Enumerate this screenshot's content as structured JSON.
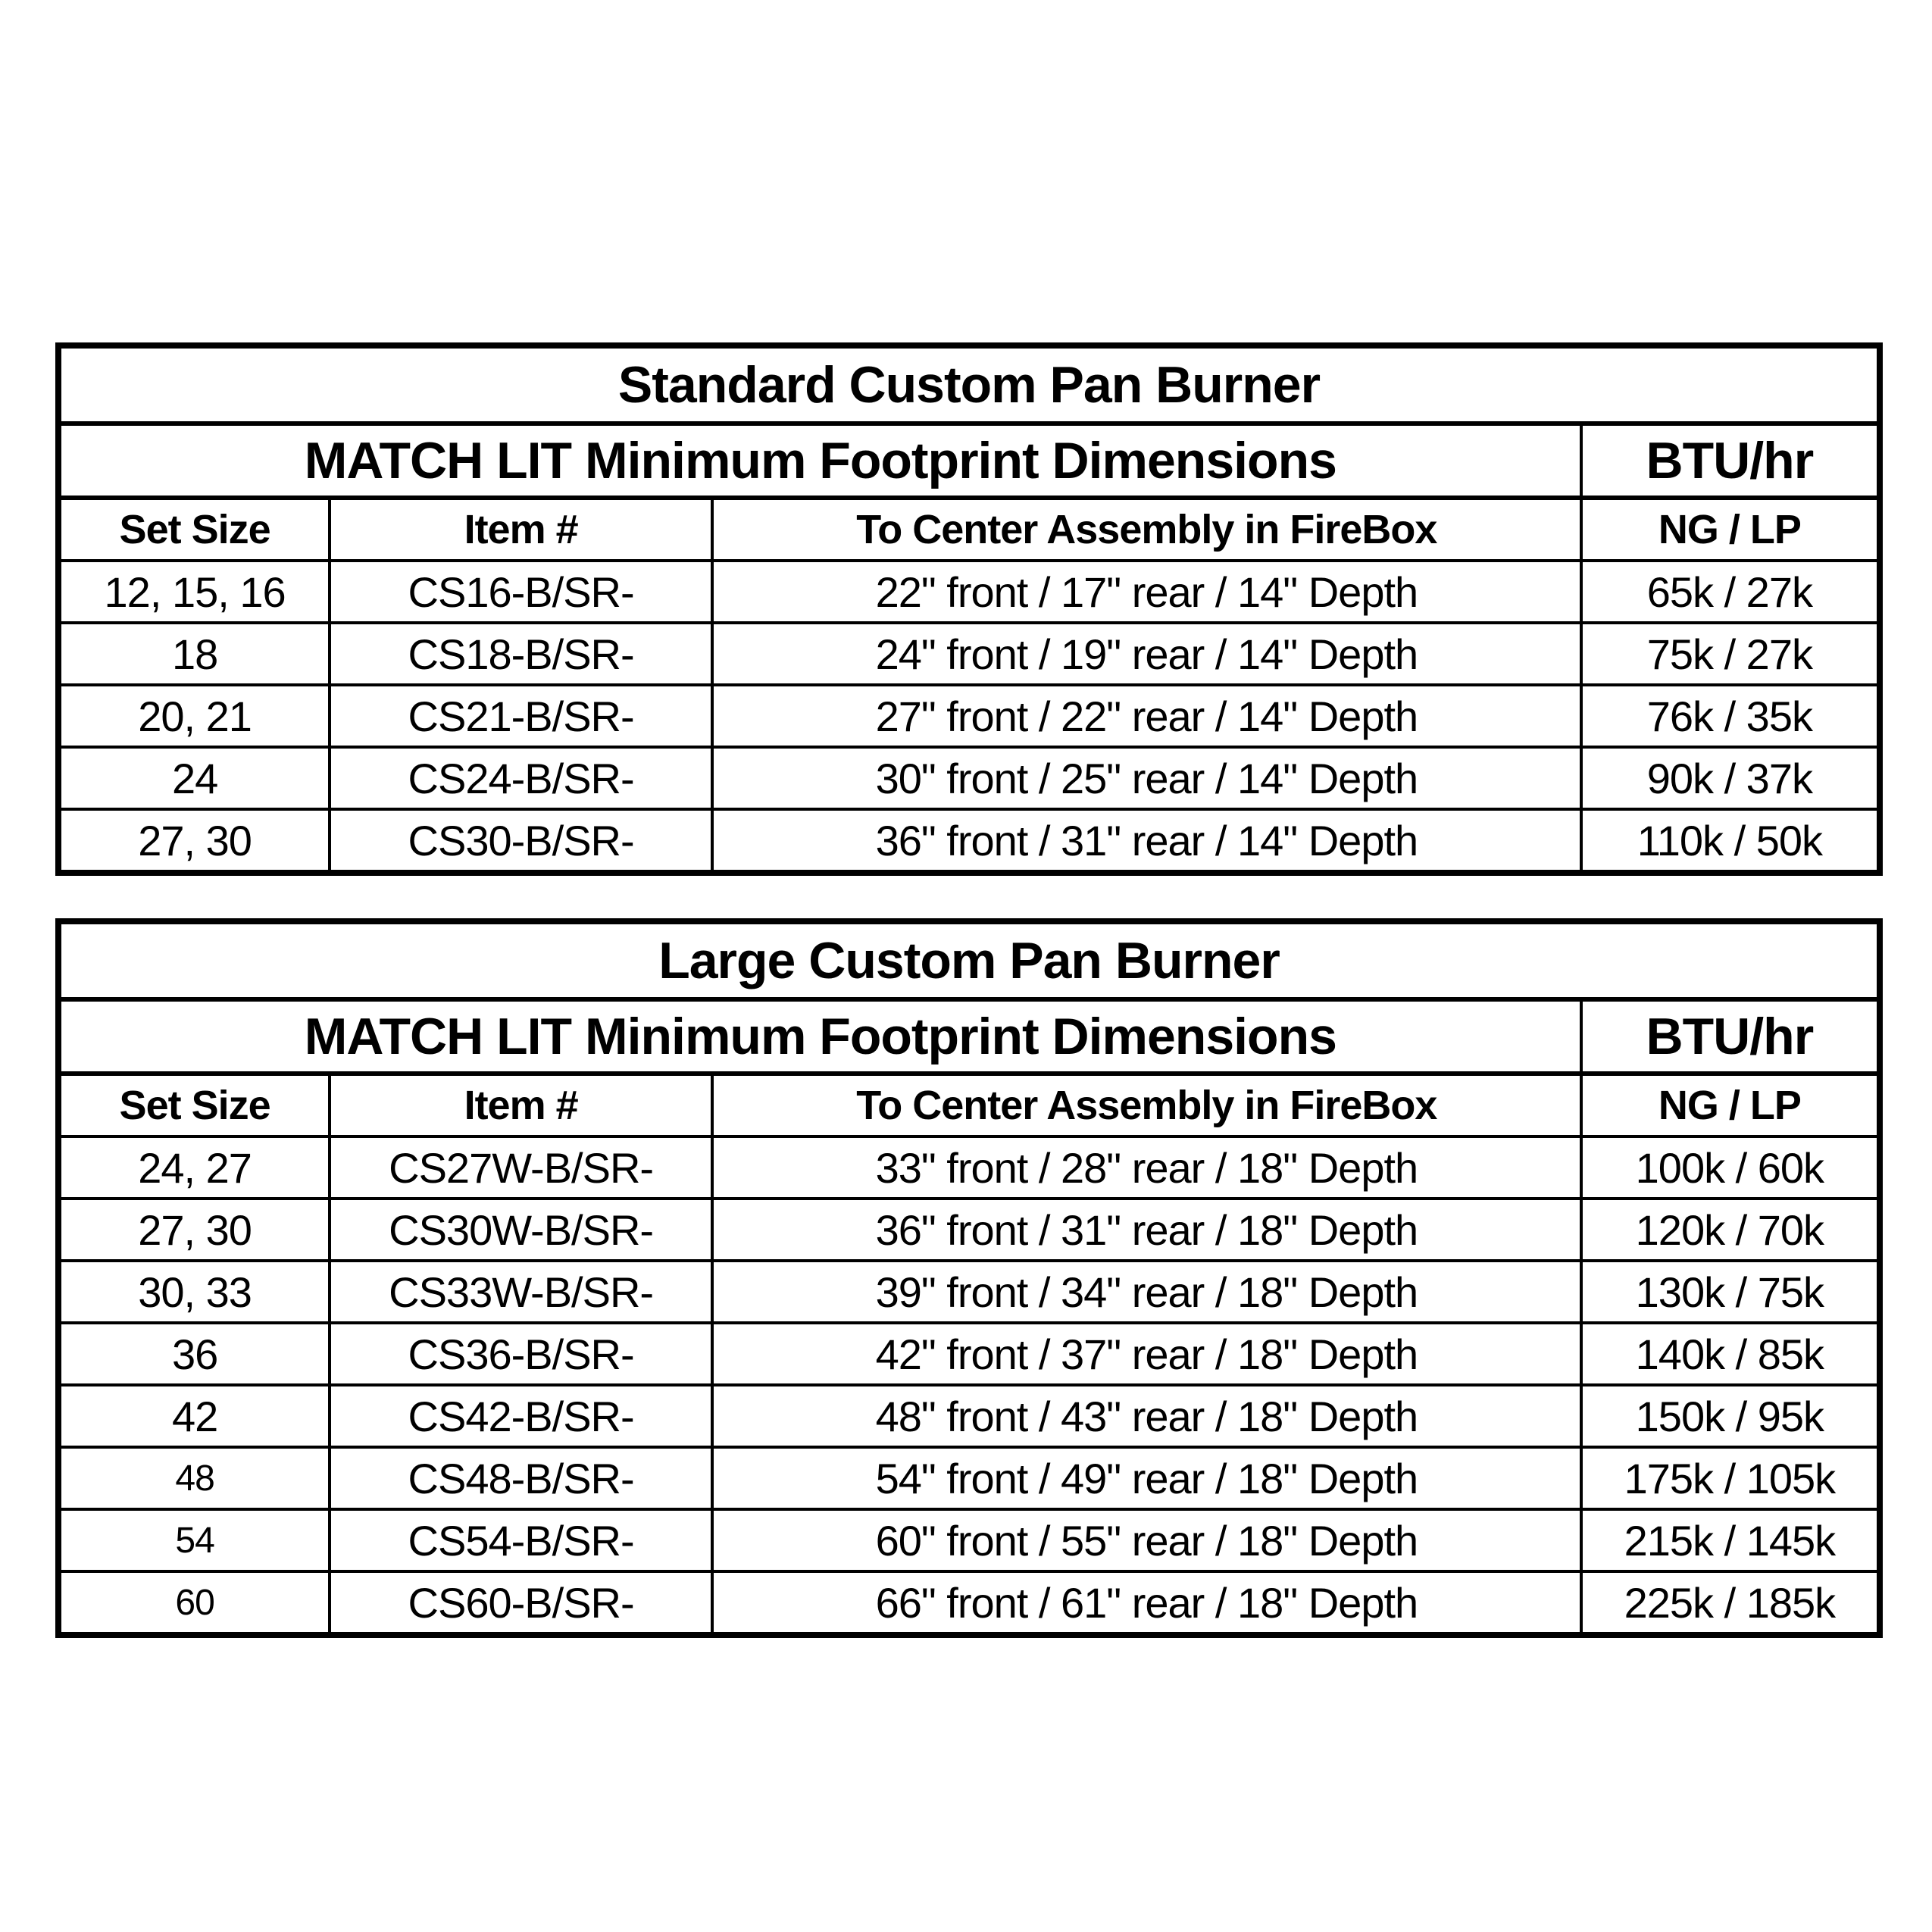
{
  "page": {
    "background_color": "#ffffff",
    "ink_color": "#000000"
  },
  "tables": [
    {
      "title": "Standard Custom Pan Burner",
      "subtitle": "MATCH LIT Minimum Footprint Dimensions",
      "btu_header": "BTU/hr",
      "columns": [
        "Set Size",
        "Item #",
        "To Center Assembly in FireBox",
        "NG / LP"
      ],
      "rows": [
        [
          "12, 15, 16",
          "CS16-B/SR-",
          "22\" front / 17\" rear / 14\" Depth",
          "65k / 27k"
        ],
        [
          "18",
          "CS18-B/SR-",
          "24\" front / 19\" rear / 14\" Depth",
          "75k / 27k"
        ],
        [
          "20, 21",
          "CS21-B/SR-",
          "27\" front / 22\" rear / 14\" Depth",
          "76k / 35k"
        ],
        [
          "24",
          "CS24-B/SR-",
          "30\" front / 25\" rear / 14\" Depth",
          "90k / 37k"
        ],
        [
          "27, 30",
          "CS30-B/SR-",
          "36\" front / 31\" rear / 14\" Depth",
          "110k / 50k"
        ]
      ]
    },
    {
      "title": "Large Custom Pan Burner",
      "subtitle": "MATCH LIT Minimum Footprint Dimensions",
      "btu_header": "BTU/hr",
      "columns": [
        "Set Size",
        "Item #",
        "To Center Assembly in FireBox",
        "NG / LP"
      ],
      "rows": [
        [
          "24, 27",
          "CS27W-B/SR-",
          "33\" front / 28\" rear / 18\" Depth",
          "100k / 60k"
        ],
        [
          "27, 30",
          "CS30W-B/SR-",
          "36\" front / 31\" rear / 18\" Depth",
          "120k / 70k"
        ],
        [
          "30, 33",
          "CS33W-B/SR-",
          "39\" front / 34\" rear / 18\" Depth",
          "130k / 75k"
        ],
        [
          "36",
          "CS36-B/SR-",
          "42\" front / 37\" rear / 18\" Depth",
          "140k / 85k"
        ],
        [
          "42",
          "CS42-B/SR-",
          "48\" front / 43\" rear / 18\" Depth",
          "150k / 95k"
        ],
        [
          "48",
          "CS48-B/SR-",
          "54\" front / 49\" rear / 18\" Depth",
          "175k / 105k"
        ],
        [
          "54",
          "CS54-B/SR-",
          "60\" front / 55\" rear / 18\" Depth",
          "215k / 145k"
        ],
        [
          "60",
          "CS60-B/SR-",
          "66\" front / 61\" rear / 18\" Depth",
          "225k / 185k"
        ]
      ]
    }
  ]
}
